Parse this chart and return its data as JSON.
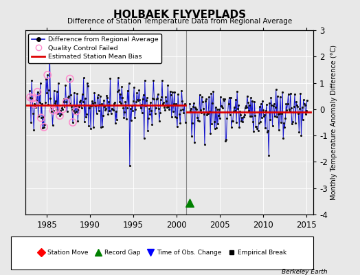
{
  "title": "HOLBAEK FLYVEPLADS",
  "subtitle": "Difference of Station Temperature Data from Regional Average",
  "ylabel": "Monthly Temperature Anomaly Difference (°C)",
  "xlabel_ticks": [
    1985,
    1990,
    1995,
    2000,
    2005,
    2010,
    2015
  ],
  "ylim": [
    -4,
    3
  ],
  "yticks": [
    -4,
    -3,
    -2,
    -1,
    0,
    1,
    2,
    3
  ],
  "xlim": [
    1982.5,
    2015.8
  ],
  "background_color": "#e8e8e8",
  "plot_bg_color": "#e8e8e8",
  "vertical_line_x": 2001.1,
  "bias_y1": 0.15,
  "bias_y2": -0.12,
  "bias_x1_start": 1982.5,
  "bias_x1_end": 2001.0,
  "bias_x2_start": 2001.2,
  "bias_x2_end": 2015.5,
  "record_gap_x": 2001.5,
  "record_gap_y": -3.55,
  "line_color": "#1111cc",
  "dot_color": "#111111",
  "qc_color": "#ff88cc",
  "bias_color": "#dd0000",
  "gap_line_color": "#888888",
  "seed1": 10,
  "seed2": 20
}
